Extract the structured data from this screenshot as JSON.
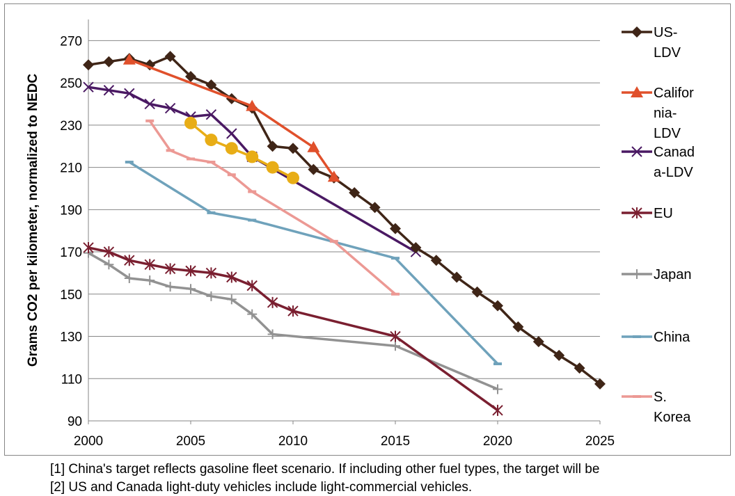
{
  "chart_data": {
    "type": "line",
    "title": "",
    "ylabel": "Grams CO2 per kilometer, normalized to NEDC",
    "xlabel": "",
    "xlim": [
      2000,
      2025
    ],
    "ylim": [
      90,
      280
    ],
    "xticks": [
      "2000",
      "2005",
      "2010",
      "2015",
      "2020",
      "2025"
    ],
    "yticks": [
      "90",
      "110",
      "130",
      "150",
      "170",
      "190",
      "210",
      "230",
      "250",
      "270"
    ],
    "grid": "horizontal",
    "legend": "right",
    "series": [
      {
        "name": "US-LDV",
        "legend_lines": [
          "US-",
          "LDV"
        ],
        "color": "#3f2517",
        "marker": "diamond",
        "points": [
          [
            2000,
            258.5
          ],
          [
            2001,
            260
          ],
          [
            2002,
            261.5
          ],
          [
            2003,
            258.5
          ],
          [
            2004,
            262.5
          ],
          [
            2005,
            253
          ],
          [
            2006,
            249
          ],
          [
            2007,
            242.5
          ],
          [
            2008,
            238
          ],
          [
            2009,
            220
          ],
          [
            2010,
            219
          ],
          [
            2011,
            209
          ],
          [
            2012,
            205
          ],
          [
            2013,
            198
          ],
          [
            2014,
            191
          ],
          [
            2015,
            181
          ],
          [
            2016,
            172
          ],
          [
            2017,
            166
          ],
          [
            2018,
            158
          ],
          [
            2019,
            151
          ],
          [
            2020,
            144.5
          ],
          [
            2021,
            134.5
          ],
          [
            2022,
            127.5
          ],
          [
            2023,
            121
          ],
          [
            2024,
            115
          ],
          [
            2025,
            107.5
          ]
        ]
      },
      {
        "name": "California-LDV",
        "legend_lines": [
          "Califor",
          "nia-",
          "LDV"
        ],
        "color": "#e0502b",
        "marker": "triangle",
        "points": [
          [
            2002,
            261
          ],
          [
            2008,
            239
          ],
          [
            2011,
            219.5
          ],
          [
            2012,
            205.5
          ]
        ]
      },
      {
        "name": "Canada-LDV",
        "legend_lines": [
          "Canad",
          "a-LDV"
        ],
        "color": "#4a1963",
        "marker": "x",
        "points": [
          [
            2000,
            248
          ],
          [
            2001,
            246.5
          ],
          [
            2002,
            245
          ],
          [
            2003,
            240
          ],
          [
            2004,
            238
          ],
          [
            2005,
            234
          ],
          [
            2006,
            235
          ],
          [
            2007,
            226
          ],
          [
            2008,
            215
          ],
          [
            2016,
            170
          ]
        ]
      },
      {
        "name": "EU",
        "legend_lines": [
          "EU"
        ],
        "color": "#7a1f30",
        "marker": "asterisk",
        "points": [
          [
            2000,
            172
          ],
          [
            2001,
            170
          ],
          [
            2002,
            166
          ],
          [
            2003,
            164
          ],
          [
            2004,
            162
          ],
          [
            2005,
            161
          ],
          [
            2006,
            160
          ],
          [
            2007,
            158
          ],
          [
            2008,
            154
          ],
          [
            2009,
            146
          ],
          [
            2010,
            142
          ],
          [
            2015,
            130
          ],
          [
            2020,
            95
          ]
        ]
      },
      {
        "name": "Japan",
        "legend_lines": [
          "Japan"
        ],
        "color": "#929292",
        "marker": "plus",
        "points": [
          [
            2000,
            169.5
          ],
          [
            2001,
            164
          ],
          [
            2002,
            157.5
          ],
          [
            2003,
            156.5
          ],
          [
            2004,
            153.5
          ],
          [
            2005,
            152.5
          ],
          [
            2006,
            149
          ],
          [
            2007,
            147.5
          ],
          [
            2008,
            140.5
          ],
          [
            2009,
            131
          ],
          [
            2015,
            125.5
          ],
          [
            2020,
            105
          ]
        ]
      },
      {
        "name": "China",
        "legend_lines": [
          "China"
        ],
        "color": "#6fa2bb",
        "marker": "dash",
        "points": [
          [
            2002,
            212.5
          ],
          [
            2006,
            188.5
          ],
          [
            2008,
            185
          ],
          [
            2015,
            167
          ],
          [
            2020,
            117
          ]
        ]
      },
      {
        "name": "S. Korea",
        "legend_lines": [
          "S.",
          "Korea"
        ],
        "color": "#ec9994",
        "marker": "dash",
        "points": [
          [
            2003,
            232
          ],
          [
            2004,
            218
          ],
          [
            2005,
            214
          ],
          [
            2006,
            212.5
          ],
          [
            2007,
            206.5
          ],
          [
            2008,
            198.5
          ],
          [
            2012,
            175
          ],
          [
            2015,
            150
          ]
        ]
      },
      {
        "name": "",
        "legend_lines": [],
        "color": "#e8ad16",
        "marker": "circle",
        "points": [
          [
            2005,
            231
          ],
          [
            2006,
            223
          ],
          [
            2007,
            219
          ],
          [
            2008,
            215
          ],
          [
            2009,
            210
          ],
          [
            2010,
            205
          ]
        ]
      }
    ],
    "footnotes": [
      "[1] China's target reflects gasoline fleet scenario. If including other fuel types, the target will be",
      "[2] US and Canada light-duty vehicles include light-commercial vehicles."
    ]
  }
}
